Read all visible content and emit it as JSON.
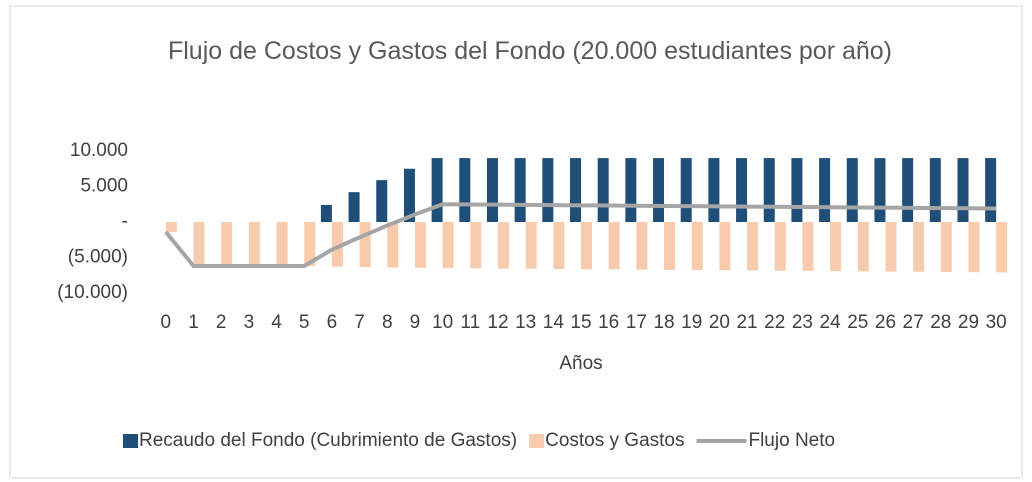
{
  "chart_data": {
    "type": "bar_line",
    "title": "Flujo de Costos y Gastos del Fondo (20.000 estudiantes por año)",
    "x_label": "Años",
    "categories": [
      "0",
      "1",
      "2",
      "3",
      "4",
      "5",
      "6",
      "7",
      "8",
      "9",
      "10",
      "11",
      "12",
      "13",
      "14",
      "15",
      "16",
      "17",
      "18",
      "19",
      "20",
      "21",
      "22",
      "23",
      "24",
      "25",
      "26",
      "27",
      "28",
      "29",
      "30"
    ],
    "series": [
      {
        "name": "Recaudo del Fondo (Cubrimiento de Gastos)",
        "type": "bar",
        "color": "#1f4e79",
        "values": [
          0,
          0,
          0,
          0,
          0,
          0,
          2400,
          4200,
          5900,
          7500,
          9000,
          9000,
          9000,
          9000,
          9000,
          9000,
          9000,
          9000,
          9000,
          9000,
          9000,
          9000,
          9000,
          9000,
          9000,
          9000,
          9000,
          9000,
          9000,
          9000,
          9000
        ]
      },
      {
        "name": "Costos y Gastos",
        "type": "bar",
        "color": "#f8cbad",
        "values": [
          -1400,
          -6200,
          -6200,
          -6200,
          -6200,
          -6200,
          -6300,
          -6350,
          -6400,
          -6450,
          -6500,
          -6530,
          -6560,
          -6590,
          -6620,
          -6650,
          -6680,
          -6710,
          -6740,
          -6770,
          -6800,
          -6830,
          -6860,
          -6890,
          -6920,
          -6950,
          -6980,
          -7010,
          -7040,
          -7070,
          -7100
        ]
      },
      {
        "name": "Flujo Neto",
        "type": "line",
        "color": "#a5a5a5",
        "values": [
          -1400,
          -6200,
          -6200,
          -6200,
          -6200,
          -6200,
          -3900,
          -2150,
          -500,
          1050,
          2500,
          2470,
          2440,
          2410,
          2380,
          2350,
          2320,
          2290,
          2260,
          2230,
          2200,
          2170,
          2140,
          2110,
          2080,
          2050,
          2020,
          1990,
          1960,
          1930,
          1900
        ]
      }
    ],
    "ylim": [
      -10000,
      10000
    ],
    "yticks": [
      {
        "value": -10000,
        "label": "(10.000)"
      },
      {
        "value": -5000,
        "label": "(5.000)"
      },
      {
        "value": 0,
        "label": "-"
      },
      {
        "value": 5000,
        "label": "5.000"
      },
      {
        "value": 10000,
        "label": "10.000"
      }
    ],
    "grid": false,
    "legend": "bottom"
  }
}
